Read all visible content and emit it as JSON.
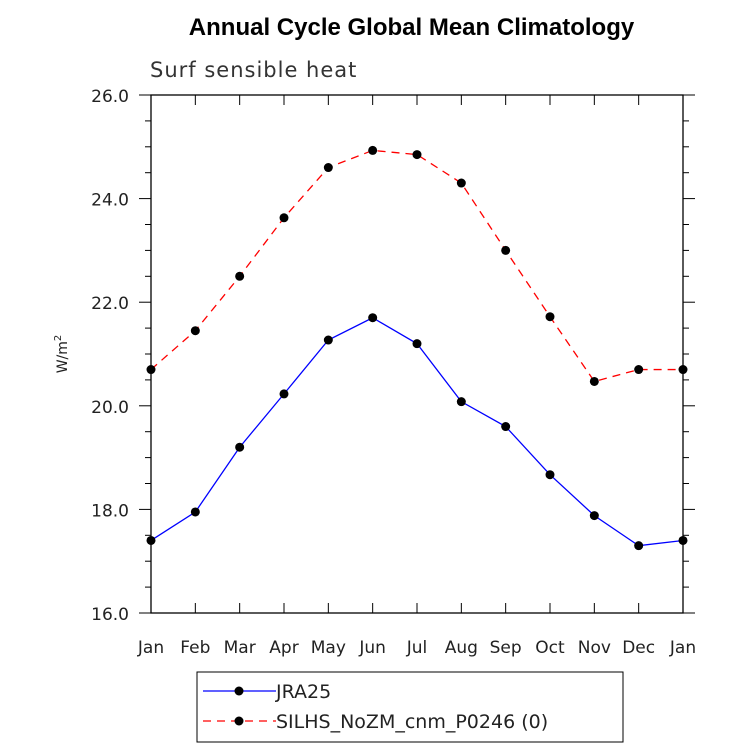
{
  "chart_data": {
    "type": "line",
    "title": "Annual Cycle Global Mean Climatology",
    "subtitle": "Surf sensible heat",
    "ylabel": "W/m",
    "ylabel_sup": "2",
    "categories": [
      "Jan",
      "Feb",
      "Mar",
      "Apr",
      "May",
      "Jun",
      "Jul",
      "Aug",
      "Sep",
      "Oct",
      "Nov",
      "Dec",
      "Jan"
    ],
    "ylim": [
      16.0,
      26.0
    ],
    "yticks": [
      16.0,
      18.0,
      20.0,
      22.0,
      24.0,
      26.0
    ],
    "ytick_labels": [
      "16.0",
      "18.0",
      "20.0",
      "22.0",
      "24.0",
      "26.0"
    ],
    "series": [
      {
        "name": "JRA25",
        "color": "#0000ff",
        "dashed": false,
        "values": [
          17.4,
          17.95,
          19.2,
          20.23,
          21.27,
          21.7,
          21.2,
          20.08,
          19.6,
          18.67,
          17.88,
          17.3,
          17.4
        ]
      },
      {
        "name": "SILHS_NoZM_cnm_P0246 (0)",
        "color": "#ff0000",
        "dashed": true,
        "values": [
          20.7,
          21.45,
          22.5,
          23.63,
          24.6,
          24.93,
          24.85,
          24.3,
          23.0,
          21.72,
          20.47,
          20.7,
          20.7
        ]
      }
    ],
    "legend_position": "bottom"
  }
}
